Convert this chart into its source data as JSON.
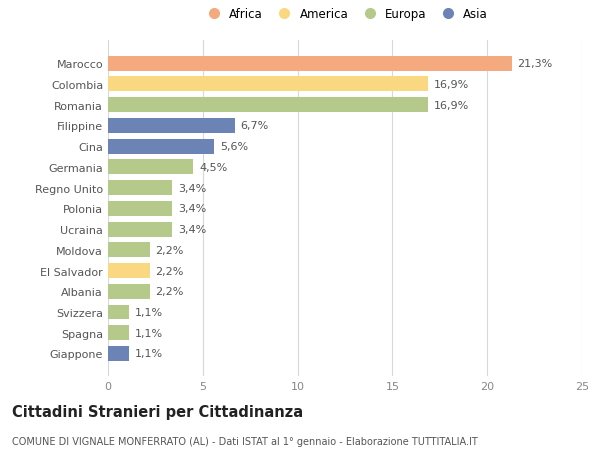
{
  "categories": [
    "Marocco",
    "Colombia",
    "Romania",
    "Filippine",
    "Cina",
    "Germania",
    "Regno Unito",
    "Polonia",
    "Ucraina",
    "Moldova",
    "El Salvador",
    "Albania",
    "Svizzera",
    "Spagna",
    "Giappone"
  ],
  "values": [
    21.3,
    16.9,
    16.9,
    6.7,
    5.6,
    4.5,
    3.4,
    3.4,
    3.4,
    2.2,
    2.2,
    2.2,
    1.1,
    1.1,
    1.1
  ],
  "labels": [
    "21,3%",
    "16,9%",
    "16,9%",
    "6,7%",
    "5,6%",
    "4,5%",
    "3,4%",
    "3,4%",
    "3,4%",
    "2,2%",
    "2,2%",
    "2,2%",
    "1,1%",
    "1,1%",
    "1,1%"
  ],
  "colors": [
    "#F4A97F",
    "#FAD882",
    "#B5C98A",
    "#6B83B5",
    "#6B83B5",
    "#B5C98A",
    "#B5C98A",
    "#B5C98A",
    "#B5C98A",
    "#B5C98A",
    "#FAD882",
    "#B5C98A",
    "#B5C98A",
    "#B5C98A",
    "#6B83B5"
  ],
  "legend_labels": [
    "Africa",
    "America",
    "Europa",
    "Asia"
  ],
  "legend_colors": [
    "#F4A97F",
    "#FAD882",
    "#B5C98A",
    "#6B83B5"
  ],
  "xlim": [
    0,
    25
  ],
  "xticks": [
    0,
    5,
    10,
    15,
    20,
    25
  ],
  "title": "Cittadini Stranieri per Cittadinanza",
  "subtitle": "COMUNE DI VIGNALE MONFERRATO (AL) - Dati ISTAT al 1° gennaio - Elaborazione TUTTITALIA.IT",
  "background_color": "#ffffff",
  "grid_color": "#d8d8d8",
  "bar_height": 0.72,
  "label_fontsize": 8,
  "tick_fontsize": 8,
  "title_fontsize": 10.5,
  "subtitle_fontsize": 7
}
